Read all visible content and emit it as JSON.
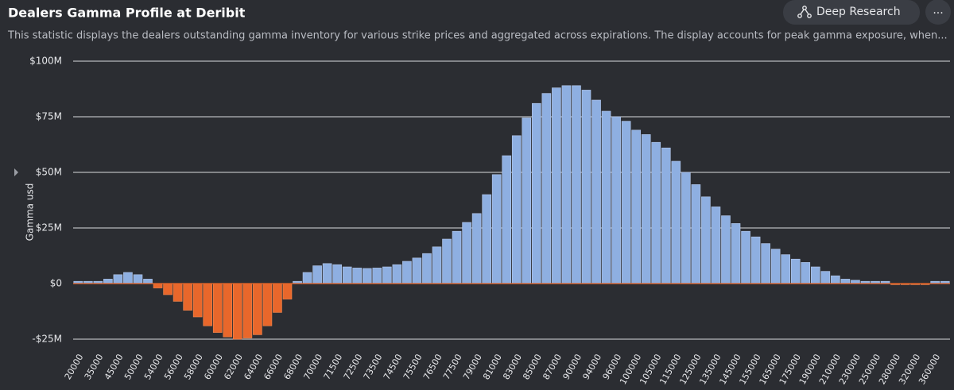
{
  "header": {
    "title": "Dealers Gamma Profile at Deribit",
    "subtitle": "This statistic displays the dealers outstanding gamma inventory for various strike prices and aggregated across expirations. The display accounts for peak gamma exposure, when...",
    "button": "Deep Research",
    "menu": "..."
  },
  "chart_data": {
    "type": "bar",
    "y_label": "Gamma usd",
    "categories": [
      "20000",
      null,
      "35000",
      null,
      "45000",
      null,
      "50000",
      null,
      "54000",
      null,
      "56000",
      null,
      "58000",
      null,
      "60000",
      null,
      "62000",
      null,
      "64000",
      null,
      "66000",
      null,
      "68000",
      null,
      "70000",
      null,
      "71500",
      null,
      "72500",
      null,
      "73500",
      null,
      "74500",
      null,
      "75500",
      null,
      "76500",
      null,
      "77500",
      null,
      "79000",
      null,
      "81000",
      null,
      "83000",
      null,
      "85000",
      null,
      "87000",
      null,
      "90000",
      null,
      "94000",
      null,
      "96000",
      null,
      "100000",
      null,
      "105000",
      null,
      "115000",
      null,
      "125000",
      null,
      "135000",
      null,
      "145000",
      null,
      "155000",
      null,
      "165000",
      null,
      "175000",
      null,
      "190000",
      null,
      "210000",
      null,
      "230000",
      null,
      "250000",
      null,
      "280000",
      null,
      "320000",
      null,
      "360000",
      null
    ],
    "values": [
      1,
      1,
      1,
      2,
      4,
      5,
      4,
      2,
      -2,
      -5,
      -8,
      -12,
      -15,
      -19,
      -22,
      -24,
      -25,
      -24.5,
      -23,
      -19,
      -13,
      -7,
      1,
      5,
      8,
      9,
      8.5,
      7.5,
      7,
      6.8,
      7,
      7.5,
      8.5,
      10,
      11.5,
      13.5,
      16.5,
      20,
      23.5,
      27.5,
      31.5,
      40,
      49,
      57.5,
      66.5,
      74.5,
      81,
      85.5,
      88,
      89,
      89,
      87,
      82.5,
      77.5,
      75,
      73,
      69,
      67,
      63.5,
      61,
      55,
      50,
      44.5,
      39,
      34.5,
      30.5,
      27,
      23.5,
      21,
      18,
      15.5,
      13,
      11,
      9.5,
      7.5,
      5.5,
      3.5,
      2,
      1.5,
      1,
      1,
      1,
      -0.5,
      -0.5,
      -0.5,
      -0.5,
      1,
      1
    ],
    "color": "#8eafe1",
    "negative_color": "#e8672b",
    "ylim": [
      -30,
      100
    ],
    "yticks": [
      {
        "value": -25,
        "label": "-$25M"
      },
      {
        "value": 0,
        "label": "$0"
      },
      {
        "value": 25,
        "label": "$25M"
      },
      {
        "value": 50,
        "label": "$50M"
      },
      {
        "value": 75,
        "label": "$75M"
      },
      {
        "value": 100,
        "label": "$100M"
      }
    ],
    "grid": true
  }
}
